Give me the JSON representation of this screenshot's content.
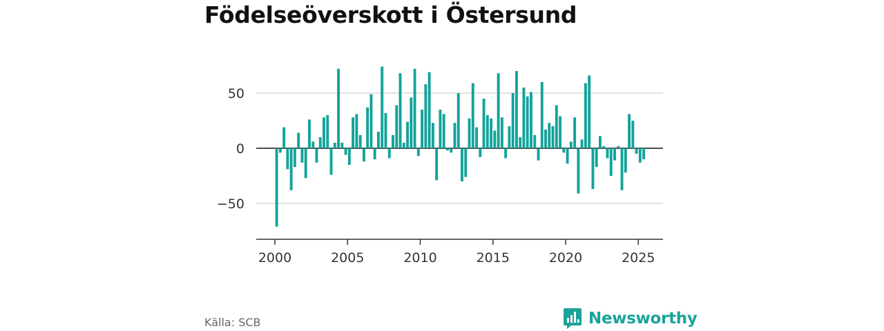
{
  "title": "Födelseöverskott i Östersund",
  "source": "Källa: SCB",
  "brand": {
    "name": "Newsworthy",
    "icon": "bar-chart-speech-bubble-icon",
    "color": "#1aa39a"
  },
  "colors": {
    "bar": "#13a39a",
    "grid": "#d9d9d9",
    "zero_line": "#333333",
    "axis": "#333333"
  },
  "chart_data": {
    "type": "bar",
    "x_type": "quarterly",
    "first_period": "2000 Q1",
    "ylim": [
      -83,
      83
    ],
    "xlim": [
      2000,
      2026.4
    ],
    "yticks": [
      50,
      0,
      -50
    ],
    "ytick_labels": [
      "50",
      "0",
      "−50"
    ],
    "xticks": [
      2000,
      2005,
      2010,
      2015,
      2020,
      2025
    ],
    "xtick_labels": [
      "2000",
      "2005",
      "2010",
      "2015",
      "2020",
      "2025"
    ],
    "grid": true,
    "values": [
      -71,
      -4,
      19,
      -19,
      -38,
      -17,
      14,
      -13,
      -27,
      26,
      6,
      -13,
      10,
      28,
      30,
      -24,
      5,
      72,
      5,
      -6,
      -15,
      28,
      31,
      12,
      -12,
      37,
      49,
      -10,
      15,
      74,
      32,
      -9,
      12,
      39,
      68,
      5,
      24,
      46,
      72,
      -7,
      35,
      58,
      69,
      23,
      -29,
      35,
      31,
      -2,
      -4,
      23,
      50,
      -30,
      -26,
      27,
      59,
      19,
      -8,
      45,
      30,
      27,
      16,
      68,
      28,
      -9,
      20,
      50,
      70,
      10,
      55,
      47,
      51,
      12,
      -11,
      60,
      17,
      23,
      20,
      39,
      29,
      -4,
      -14,
      6,
      28,
      -41,
      8,
      59,
      66,
      -37,
      -17,
      11,
      2,
      -9,
      -25,
      -11,
      2,
      -38,
      -22,
      31,
      25,
      -5,
      -13,
      -10
    ]
  }
}
